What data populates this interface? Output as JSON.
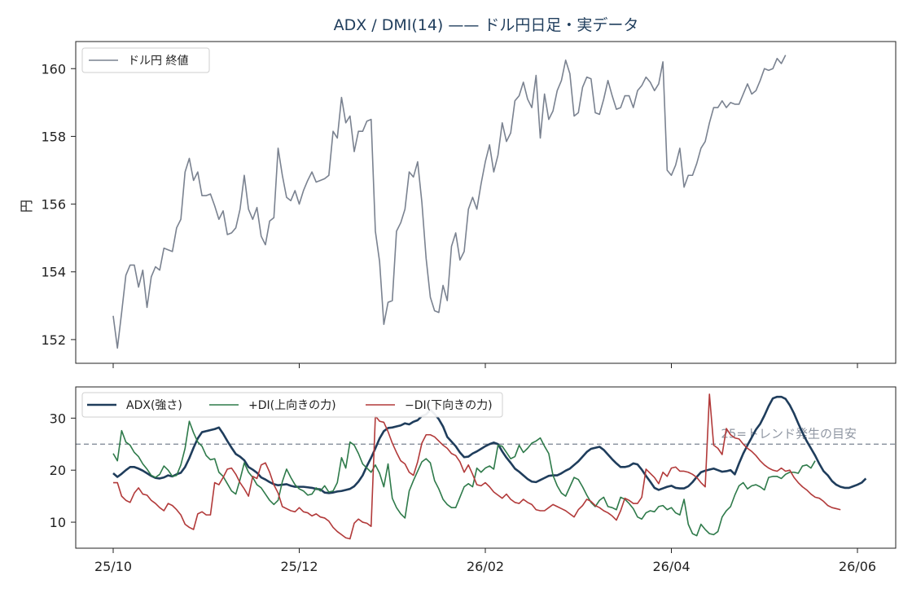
{
  "chart_data": [
    {
      "type": "line",
      "title": "ADX / DMI(14) —— ドル円日足・実データ",
      "ylabel": "円",
      "ylim": [
        151.3,
        160.8
      ],
      "yticks": [
        152,
        154,
        156,
        158,
        160
      ],
      "xlabels": [
        "25/10",
        "25/12",
        "26/02",
        "26/04",
        "26/06"
      ],
      "xlabel_positions": [
        0,
        44,
        88,
        132,
        176
      ],
      "x_count": 177,
      "grid": false,
      "legend_position": "top-left",
      "series": [
        {
          "name": "ドル円 終値",
          "color": "#7a8290",
          "values": [
            152.7,
            151.75,
            152.8,
            153.9,
            154.2,
            154.2,
            153.55,
            154.05,
            152.95,
            153.85,
            154.15,
            154.05,
            154.7,
            154.65,
            154.6,
            155.3,
            155.55,
            156.95,
            157.35,
            156.7,
            156.95,
            156.25,
            156.25,
            156.3,
            155.95,
            155.55,
            155.8,
            155.1,
            155.15,
            155.3,
            155.85,
            156.85,
            155.85,
            155.55,
            155.9,
            155.05,
            154.8,
            155.5,
            155.6,
            157.65,
            156.85,
            156.2,
            156.1,
            156.4,
            156.0,
            156.4,
            156.7,
            156.95,
            156.65,
            156.7,
            156.75,
            156.85,
            158.15,
            157.95,
            159.15,
            158.4,
            158.6,
            157.55,
            158.15,
            158.15,
            158.45,
            158.5,
            155.2,
            154.3,
            152.45,
            153.1,
            153.15,
            155.2,
            155.45,
            155.85,
            156.95,
            156.8,
            157.25,
            156.05,
            154.4,
            153.25,
            152.85,
            152.8,
            153.6,
            153.15,
            154.75,
            155.15,
            154.35,
            154.6,
            155.85,
            156.2,
            155.85,
            156.6,
            157.25,
            157.75,
            156.95,
            157.45,
            158.4,
            157.85,
            158.1,
            159.05,
            159.2,
            159.6,
            159.1,
            158.85,
            159.8,
            157.95,
            159.25,
            158.5,
            158.75,
            159.35,
            159.65,
            160.25,
            159.85,
            158.6,
            158.7,
            159.45,
            159.75,
            159.7,
            158.7,
            158.65,
            159.1,
            159.65,
            159.2,
            158.8,
            158.85,
            159.2,
            159.2,
            158.85,
            159.35,
            159.5,
            159.75,
            159.6,
            159.35,
            159.55,
            160.2,
            157.0,
            156.85,
            157.15,
            157.65,
            156.5,
            156.85,
            156.85,
            157.2,
            157.65,
            157.85,
            158.4,
            158.85,
            158.85,
            159.05,
            158.85,
            159.0,
            158.95,
            158.95,
            159.25,
            159.55,
            159.25,
            159.35,
            159.65,
            160.0,
            159.95,
            160.0,
            160.3,
            160.15,
            160.4
          ]
        }
      ]
    },
    {
      "type": "line",
      "ylim": [
        5,
        36
      ],
      "yticks": [
        10,
        20,
        30
      ],
      "xlabels": [
        "25/10",
        "25/12",
        "26/02",
        "26/04",
        "26/06"
      ],
      "xlabel_positions": [
        0,
        44,
        88,
        132,
        176
      ],
      "x_count": 177,
      "grid": false,
      "legend_position": "top-left",
      "reference_line": {
        "value": 25,
        "label": "25=トレンド発生の目安",
        "color": "#7a8290"
      },
      "series": [
        {
          "name": "ADX(強さ)",
          "color": "#1f3d5c",
          "values": [
            19.4,
            18.7,
            19.3,
            20.0,
            20.6,
            20.6,
            20.3,
            19.9,
            19.4,
            18.9,
            18.5,
            18.4,
            18.6,
            19.0,
            18.8,
            19.2,
            19.5,
            20.6,
            22.3,
            24.3,
            26.1,
            27.3,
            27.5,
            27.7,
            27.9,
            28.2,
            27.0,
            25.6,
            24.3,
            23.1,
            22.6,
            21.9,
            20.6,
            20.1,
            19.5,
            18.6,
            18.2,
            17.7,
            17.3,
            17.1,
            17.2,
            17.3,
            17.0,
            16.8,
            16.8,
            16.8,
            16.7,
            16.6,
            16.4,
            16.3,
            15.7,
            15.6,
            15.7,
            15.9,
            16.0,
            16.2,
            16.4,
            16.9,
            17.8,
            19.0,
            20.8,
            22.4,
            24.2,
            26.1,
            27.5,
            28.1,
            28.2,
            28.4,
            28.6,
            29.0,
            28.8,
            29.3,
            29.6,
            30.4,
            30.7,
            31.6,
            30.8,
            29.8,
            28.4,
            26.4,
            25.5,
            24.6,
            23.4,
            22.5,
            22.6,
            23.2,
            23.6,
            24.1,
            24.6,
            25.0,
            25.3,
            25.0,
            23.6,
            22.4,
            21.4,
            20.3,
            19.7,
            19.0,
            18.3,
            17.8,
            17.7,
            18.1,
            18.5,
            18.9,
            19.0,
            19.0,
            19.4,
            19.9,
            20.3,
            21.0,
            21.7,
            22.6,
            23.5,
            24.1,
            24.3,
            24.5,
            23.9,
            23.0,
            22.1,
            21.3,
            20.6,
            20.6,
            20.8,
            21.3,
            21.1,
            20.1,
            18.9,
            17.8,
            16.6,
            16.2,
            16.5,
            16.8,
            17.0,
            16.6,
            16.5,
            16.5,
            16.9,
            17.7,
            18.7,
            19.6,
            19.9,
            20.1,
            20.3,
            20.0,
            19.7,
            19.8,
            20.0,
            19.2,
            21.3,
            23.2,
            24.8,
            26.3,
            27.8,
            28.9,
            30.5,
            32.3,
            33.8,
            34.1,
            34.1,
            33.7,
            32.5,
            30.9,
            29.0,
            27.2,
            25.6,
            24.2,
            22.8,
            21.2,
            19.8,
            19.0,
            17.9,
            17.2,
            16.8,
            16.6,
            16.6,
            16.9,
            17.2,
            17.6,
            18.4
          ]
        },
        {
          "name": "+DI(上向きの力)",
          "color": "#2e7a4a",
          "values": [
            23.2,
            21.8,
            27.6,
            25.4,
            24.8,
            23.4,
            22.6,
            21.2,
            20.2,
            19.0,
            18.6,
            19.2,
            20.8,
            20.0,
            18.8,
            19.0,
            21.0,
            24.2,
            29.4,
            27.2,
            25.4,
            24.6,
            22.8,
            22.0,
            22.2,
            19.6,
            18.8,
            17.4,
            16.0,
            15.4,
            18.2,
            21.4,
            19.6,
            18.6,
            17.2,
            16.6,
            15.4,
            14.2,
            13.4,
            14.2,
            17.8,
            20.2,
            18.6,
            17.2,
            16.4,
            16.0,
            15.2,
            15.4,
            16.6,
            16.0,
            17.0,
            15.8,
            16.0,
            17.6,
            22.4,
            20.4,
            25.4,
            24.8,
            23.2,
            21.2,
            20.4,
            19.6,
            21.0,
            19.4,
            16.8,
            21.2,
            14.6,
            12.8,
            11.6,
            10.8,
            16.0,
            18.0,
            19.8,
            21.6,
            22.2,
            21.4,
            18.0,
            16.4,
            14.4,
            13.4,
            12.8,
            12.8,
            14.8,
            16.8,
            17.4,
            16.8,
            20.4,
            19.6,
            20.4,
            20.8,
            20.2,
            24.8,
            24.6,
            23.4,
            22.2,
            22.6,
            24.8,
            23.4,
            24.2,
            25.2,
            25.6,
            26.2,
            24.6,
            23.2,
            19.0,
            17.0,
            15.6,
            15.0,
            16.8,
            18.6,
            18.2,
            16.8,
            15.2,
            13.8,
            13.0,
            14.2,
            14.8,
            13.0,
            12.8,
            12.4,
            14.8,
            14.4,
            13.6,
            12.6,
            11.0,
            10.6,
            11.8,
            12.2,
            12.0,
            13.0,
            13.2,
            12.4,
            12.8,
            11.8,
            11.4,
            14.4,
            9.6,
            7.8,
            7.4,
            9.6,
            8.6,
            7.8,
            7.6,
            8.2,
            11.0,
            12.2,
            13.0,
            15.2,
            17.0,
            17.6,
            16.4,
            17.0,
            17.2,
            16.8,
            16.2,
            18.6,
            18.8,
            18.8,
            18.4,
            19.2,
            19.6,
            19.6,
            19.4,
            20.8,
            21.0,
            20.4,
            21.8
          ]
        },
        {
          "name": "−DI(下向きの力)",
          "color": "#b23a3a",
          "values": [
            17.6,
            17.6,
            15.0,
            14.2,
            13.8,
            15.6,
            16.6,
            15.4,
            15.2,
            14.2,
            13.6,
            12.8,
            12.2,
            13.6,
            13.2,
            12.4,
            11.4,
            9.6,
            9.0,
            8.6,
            11.6,
            12.0,
            11.4,
            11.4,
            17.6,
            17.2,
            18.6,
            20.2,
            20.4,
            19.2,
            17.6,
            16.4,
            15.0,
            18.8,
            18.4,
            21.0,
            21.4,
            19.6,
            17.2,
            15.6,
            13.0,
            12.6,
            12.2,
            12.0,
            12.8,
            12.0,
            11.8,
            11.2,
            11.6,
            11.0,
            10.8,
            10.2,
            9.0,
            8.2,
            7.6,
            7.0,
            6.8,
            9.8,
            10.6,
            10.0,
            9.8,
            9.2,
            30.4,
            29.4,
            29.2,
            27.4,
            25.2,
            23.4,
            21.8,
            21.2,
            19.6,
            19.0,
            21.6,
            25.2,
            26.8,
            26.8,
            26.4,
            25.6,
            24.8,
            24.2,
            23.2,
            22.8,
            21.6,
            19.6,
            21.0,
            19.2,
            17.2,
            17.0,
            17.6,
            16.8,
            15.8,
            15.2,
            14.6,
            15.4,
            14.4,
            13.8,
            13.6,
            14.4,
            13.8,
            13.4,
            12.4,
            12.2,
            12.2,
            12.8,
            13.4,
            13.0,
            12.6,
            12.2,
            11.6,
            11.0,
            12.4,
            13.2,
            14.4,
            14.0,
            13.2,
            12.8,
            12.2,
            11.8,
            11.2,
            10.4,
            12.2,
            14.6,
            14.2,
            13.6,
            13.6,
            14.8,
            20.2,
            19.4,
            18.6,
            17.4,
            19.6,
            18.8,
            20.4,
            20.6,
            19.8,
            19.8,
            19.6,
            19.2,
            18.6,
            17.6,
            16.8,
            34.6,
            24.8,
            24.2,
            23.0,
            28.0,
            26.8,
            26.2,
            26.0,
            25.0,
            24.2,
            23.6,
            22.8,
            21.8,
            21.0,
            20.4,
            20.0,
            19.8,
            20.4,
            19.8,
            20.0,
            18.6,
            17.6,
            16.8,
            16.2,
            15.4,
            14.8,
            14.6,
            14.0,
            13.2,
            12.8,
            12.6,
            12.4
          ]
        }
      ]
    }
  ]
}
